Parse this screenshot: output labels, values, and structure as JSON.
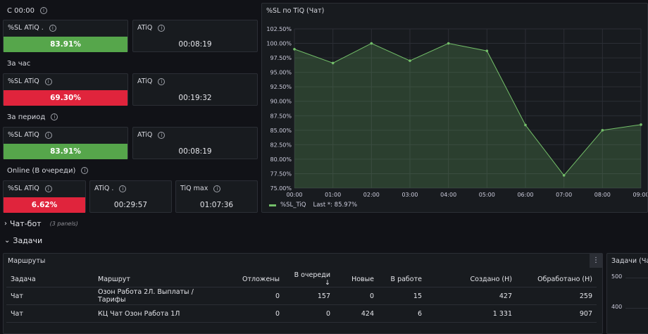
{
  "info_glyph": "i",
  "sections": {
    "since_midnight": "С 00:00",
    "last_hour": "За час",
    "period": "За период",
    "online": "Online (В очереди)"
  },
  "stats": {
    "s1": {
      "sl_title": "%SL ATiQ .",
      "sl_value": "83.91%",
      "sl_value_pct": 83.91,
      "atiq_title": "ATiQ",
      "atiq_value": "00:08:19",
      "color": "#56a64b"
    },
    "s2": {
      "sl_title": "%SL ATiQ",
      "sl_value": "69.30%",
      "sl_value_pct": 69.3,
      "atiq_title": "ATiQ",
      "atiq_value": "00:19:32",
      "color": "#e0243c"
    },
    "s3": {
      "sl_title": "%SL ATiQ",
      "sl_value": "83.91%",
      "sl_value_pct": 83.91,
      "atiq_title": "ATiQ",
      "atiq_value": "00:08:19",
      "color": "#56a64b"
    },
    "s4": {
      "sl_title": "%SL ATiQ",
      "sl_value": "6.62%",
      "sl_value_pct": 6.62,
      "atiq_title": "ATiQ .",
      "atiq_value": "00:29:57",
      "max_title": "TiQ max",
      "max_value": "01:07:36",
      "color": "#e0243c"
    }
  },
  "chart_panel": {
    "title": "%SL по TiQ (Чат)",
    "legend_label": "%SL_TiQ",
    "legend_last": "Last *: 85.97%"
  },
  "chart_data": {
    "type": "area",
    "x": [
      "00:00",
      "01:00",
      "02:00",
      "03:00",
      "04:00",
      "05:00",
      "06:00",
      "07:00",
      "08:00",
      "09:00"
    ],
    "series": [
      {
        "name": "%SL_TiQ",
        "values": [
          99.0,
          96.6,
          100.0,
          97.0,
          100.0,
          98.7,
          85.9,
          77.2,
          85.0,
          85.97
        ]
      }
    ],
    "y_ticks": [
      "75.00%",
      "77.50%",
      "80.00%",
      "82.50%",
      "85.00%",
      "87.50%",
      "90.00%",
      "92.50%",
      "95.00%",
      "97.50%",
      "100.00%",
      "102.50%"
    ],
    "ylim": [
      75,
      102.5
    ],
    "grid": true,
    "legend": "bottom-left",
    "color": "#73bf69"
  },
  "rows": {
    "chatbot": {
      "label": "Чат-бот",
      "sub": "(3 panels)",
      "chevron": "›"
    },
    "tasks": {
      "label": "Задачи",
      "chevron": "⌄"
    }
  },
  "routes_panel": {
    "title": "Маршруты",
    "menu_glyph": "⋮",
    "columns": [
      "Задача",
      "Маршрут",
      "Отложены",
      "В очереди",
      "Новые",
      "В работе",
      "Создано (Н)",
      "Обработано (Н)"
    ],
    "sort_arrow": "↓",
    "rows": [
      [
        "Чат",
        "Озон Работа 2Л. Выплаты / Тарифы",
        "0",
        "157",
        "0",
        "15",
        "427",
        "259"
      ],
      [
        "Чат",
        "КЦ Чат Озон Работа 1Л",
        "0",
        "0",
        "424",
        "6",
        "1 331",
        "907"
      ]
    ]
  },
  "tasks_chat_panel": {
    "title": "Задачи (Чат",
    "y_ticks": [
      "500",
      "400"
    ]
  }
}
